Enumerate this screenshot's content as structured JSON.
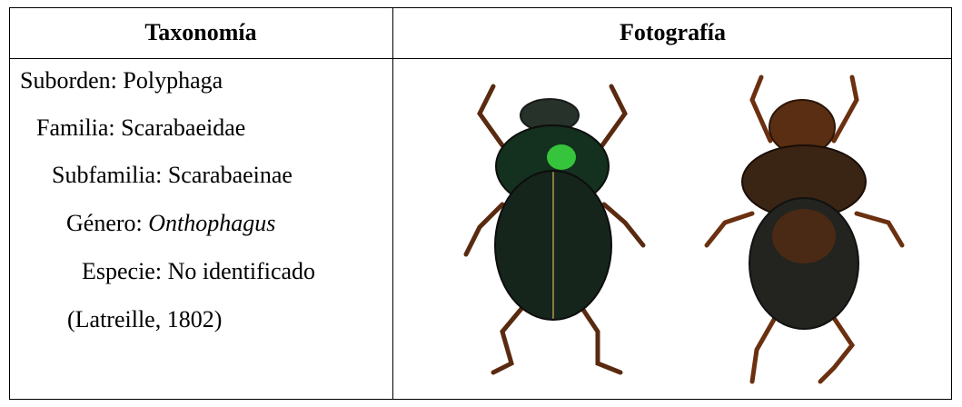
{
  "table": {
    "headers": [
      "Taxonomía",
      "Fotografía"
    ],
    "taxonomy": [
      {
        "label": "Suborden:",
        "value": "Polyphaga"
      },
      {
        "label": "Familia:",
        "value": "Scarabaeidae"
      },
      {
        "label": "Subfamilia:",
        "value": "Scarabaeinae"
      },
      {
        "label": "Género:",
        "value": "Onthophagus"
      },
      {
        "label": "Especie:",
        "value": "No identificado"
      }
    ],
    "citation": "(Latreille, 1802)"
  }
}
